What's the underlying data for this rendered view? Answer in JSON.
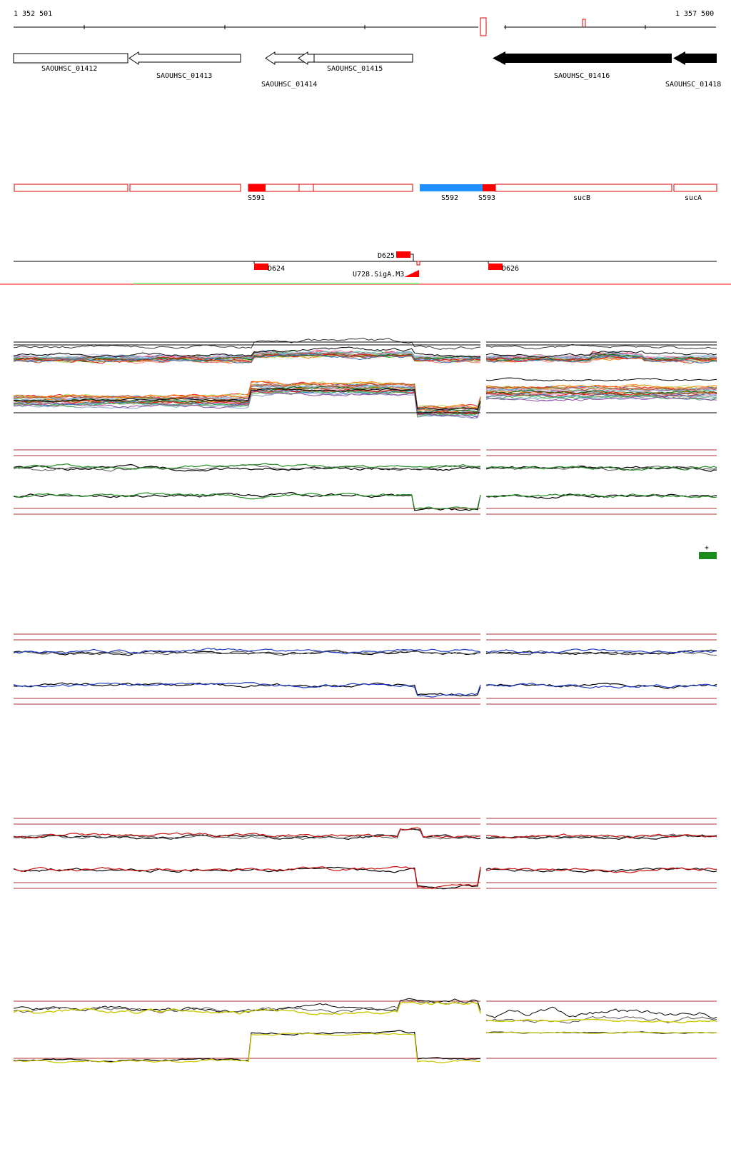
{
  "coordinates": {
    "start": "1 352 501",
    "end": "1 357 500"
  },
  "genes": [
    {
      "label": "SAOUHSC_01412",
      "style": "open"
    },
    {
      "label": "SAOUHSC_01413",
      "style": "open"
    },
    {
      "label": "SAOUHSC_01414",
      "style": "open"
    },
    {
      "label": "SAOUHSC_01415",
      "style": "open"
    },
    {
      "label": "SAOUHSC_01416",
      "style": "filled"
    },
    {
      "label": "SAOUHSC_01418",
      "style": "filled"
    }
  ],
  "segments": [
    {
      "label": "S591",
      "color": "#ff0000"
    },
    {
      "label": "S592",
      "color": "#1e90ff"
    },
    {
      "label": "S593",
      "color": "#ff0000"
    },
    {
      "label": "sucB",
      "color": "#ff0000"
    },
    {
      "label": "sucA",
      "color": "#ff0000"
    }
  ],
  "features": [
    {
      "label": "D625"
    },
    {
      "label": "D624"
    },
    {
      "label": "U728.SigA.M3"
    },
    {
      "label": "D626"
    }
  ],
  "marker": {
    "label": "+",
    "color": "#1a8c1a"
  },
  "colors": {
    "panel_green": "#228b22",
    "panel_blue": "#1e3cc8",
    "panel_red": "#cc1010",
    "panel_yellow": "#c8c800",
    "guide": "#b03030"
  }
}
